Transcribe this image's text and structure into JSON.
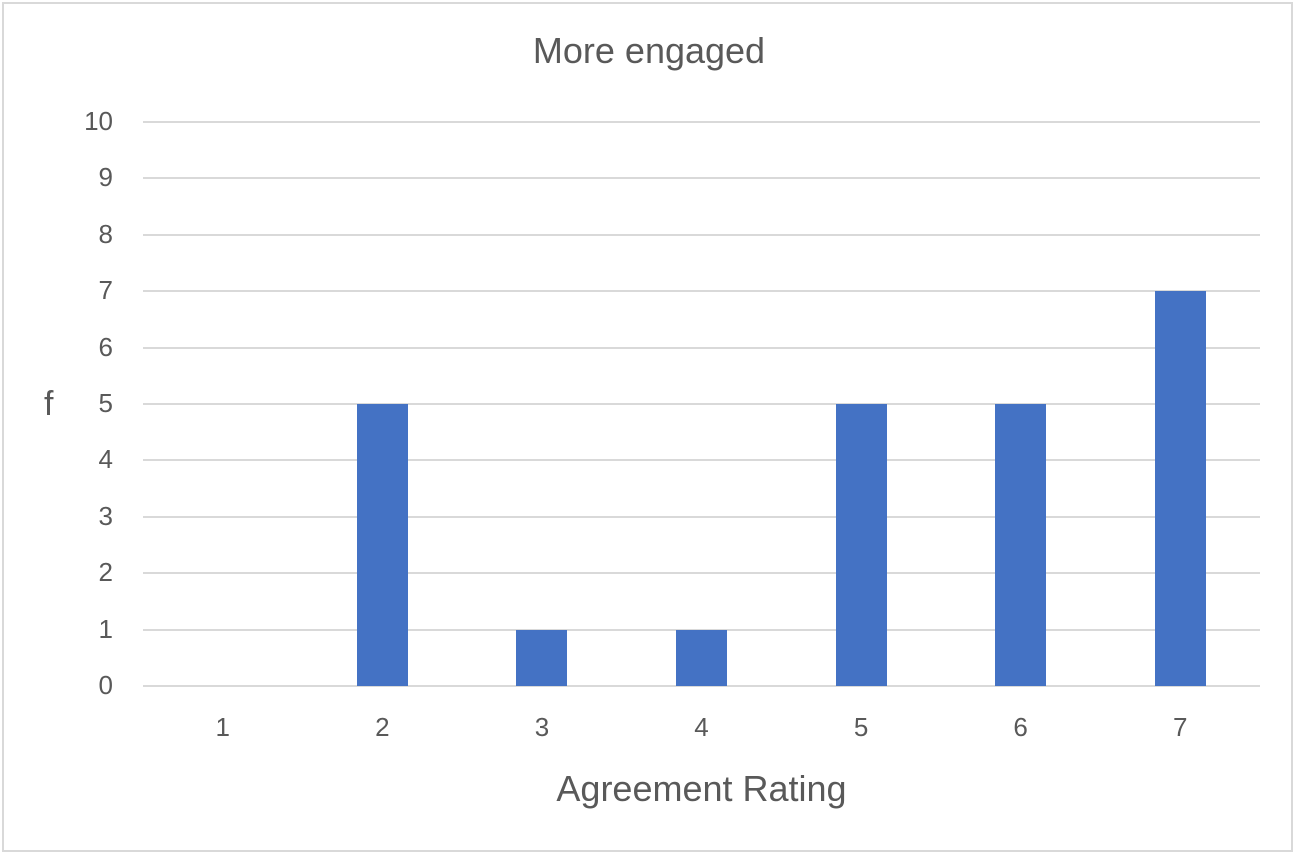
{
  "chart_data": {
    "type": "bar",
    "title": "More engaged",
    "xlabel": "Agreement Rating",
    "ylabel": "f",
    "categories": [
      "1",
      "2",
      "3",
      "4",
      "5",
      "6",
      "7"
    ],
    "values": [
      0,
      5,
      1,
      1,
      5,
      5,
      7
    ],
    "ylim": [
      0,
      10
    ],
    "yticks": [
      "0",
      "1",
      "2",
      "3",
      "4",
      "5",
      "6",
      "7",
      "8",
      "9",
      "10"
    ],
    "grid": true,
    "legend": null,
    "bar_color": "#4472c4"
  }
}
